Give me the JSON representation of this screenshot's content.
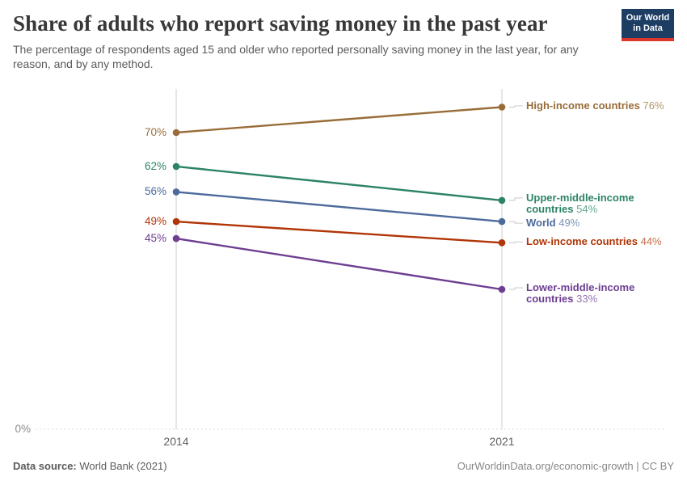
{
  "header": {
    "title": "Share of adults who report saving money in the past year",
    "subtitle": "The percentage of respondents aged 15 and older who reported personally saving money in the last year, for any reason, and by any method.",
    "logo": {
      "line1": "Our World",
      "line2": "in Data",
      "bg_color": "#1d3d63",
      "accent_color": "#dc372f"
    }
  },
  "chart_data": {
    "type": "line",
    "title": "Share of adults who report saving money in the past year",
    "x": [
      2014,
      2021
    ],
    "x_tick_labels": [
      "2014",
      "2021"
    ],
    "y_axis": {
      "min": 0,
      "baseline_label": "0%",
      "unit": "%"
    },
    "grid": "baseline-dotted-only",
    "legend_position": "right-inline-labels",
    "series": [
      {
        "name": "High-income countries",
        "values": [
          70,
          76
        ],
        "color": "#996D39"
      },
      {
        "name": "Upper-middle-income countries",
        "values": [
          62,
          54
        ],
        "color": "#2C8465"
      },
      {
        "name": "World",
        "values": [
          56,
          49
        ],
        "color": "#4C6A9C"
      },
      {
        "name": "Low-income countries",
        "values": [
          49,
          44
        ],
        "color": "#B13507"
      },
      {
        "name": "Lower-middle-income countries",
        "values": [
          45,
          33
        ],
        "color": "#6D3E91"
      }
    ]
  },
  "footer": {
    "source_label": "Data source:",
    "source_value": "World Bank (2021)",
    "credit": "OurWorldinData.org/economic-growth | CC BY"
  }
}
